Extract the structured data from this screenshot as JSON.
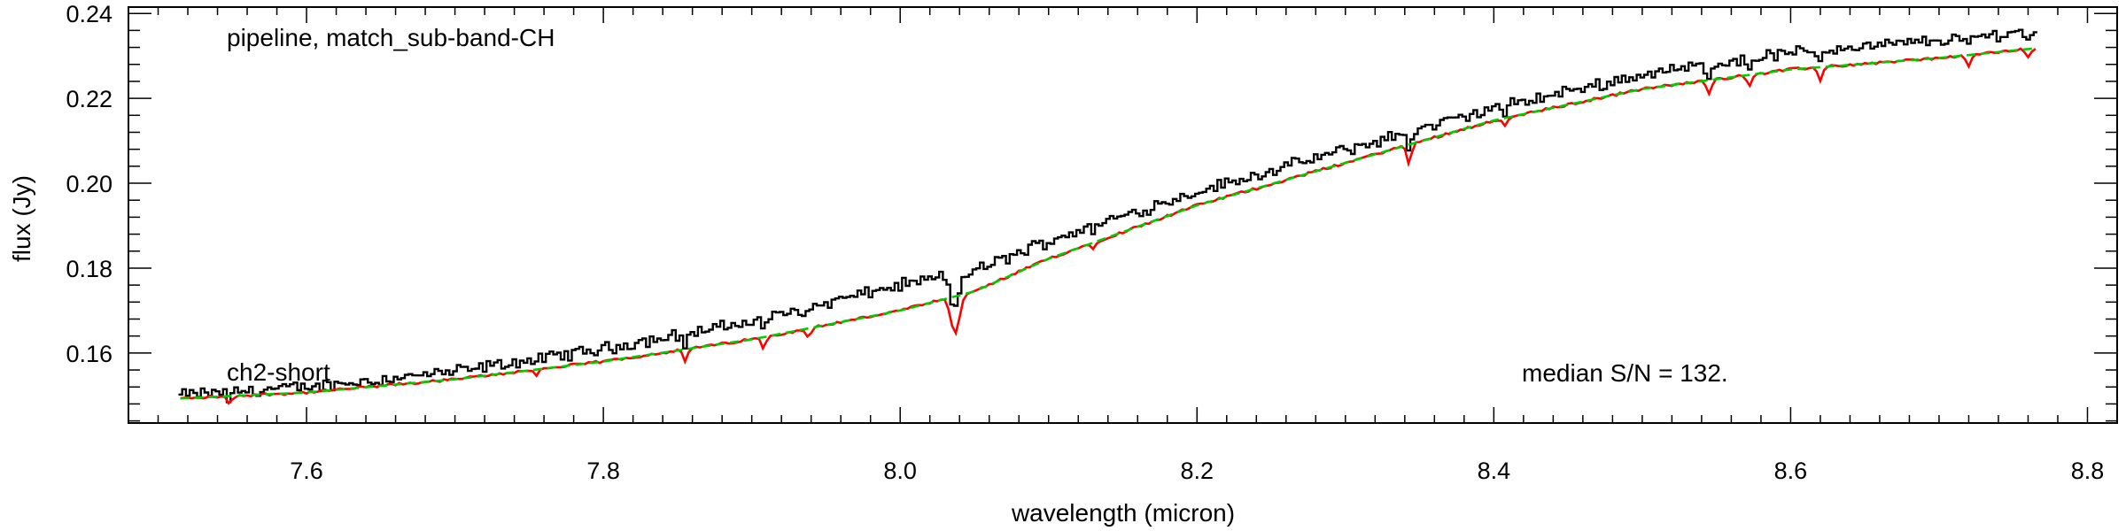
{
  "chart_data": {
    "type": "line",
    "title": "",
    "xlabel": "wavelength (micron)",
    "ylabel": "flux (Jy)",
    "xlim": [
      7.48,
      8.82
    ],
    "ylim": [
      0.1435,
      0.2415
    ],
    "x_ticks": [
      7.6,
      7.8,
      8.0,
      8.2,
      8.4,
      8.6,
      8.8
    ],
    "x_tick_labels": [
      "7.6",
      "7.8",
      "8.0",
      "8.2",
      "8.4",
      "8.6",
      "8.8"
    ],
    "y_ticks": [
      0.16,
      0.18,
      0.2,
      0.22,
      0.24
    ],
    "y_tick_labels": [
      "0.16",
      "0.18",
      "0.20",
      "0.22",
      "0.24"
    ],
    "grid": false,
    "annotations": {
      "top_left": "pipeline, match_sub-band-CH",
      "bottom_left": "ch2-short",
      "bottom_right": "median S/N = 132."
    },
    "colors": {
      "data": "#000000",
      "model": "#ff0000",
      "continuum": "#00cc00"
    },
    "continuum_points": [
      [
        7.515,
        0.1493
      ],
      [
        7.6,
        0.1507
      ],
      [
        7.7,
        0.1538
      ],
      [
        7.8,
        0.158
      ],
      [
        7.9,
        0.1632
      ],
      [
        8.0,
        0.17
      ],
      [
        8.05,
        0.1745
      ],
      [
        8.1,
        0.1822
      ],
      [
        8.2,
        0.1948
      ],
      [
        8.3,
        0.2048
      ],
      [
        8.4,
        0.2148
      ],
      [
        8.5,
        0.2222
      ],
      [
        8.6,
        0.2268
      ],
      [
        8.7,
        0.2295
      ],
      [
        8.765,
        0.2318
      ]
    ],
    "data_offset_points": [
      [
        7.515,
        0.0008
      ],
      [
        7.7,
        0.0018
      ],
      [
        7.9,
        0.0042
      ],
      [
        8.0,
        0.006
      ],
      [
        8.05,
        0.0048
      ],
      [
        8.2,
        0.0032
      ],
      [
        8.4,
        0.0028
      ],
      [
        8.6,
        0.004
      ],
      [
        8.765,
        0.0042
      ]
    ],
    "absorption_features": [
      {
        "x": 7.548,
        "depth": 0.002
      },
      {
        "x": 7.755,
        "depth": 0.0012
      },
      {
        "x": 7.855,
        "depth": 0.0028
      },
      {
        "x": 7.908,
        "depth": 0.0025
      },
      {
        "x": 7.938,
        "depth": 0.0022
      },
      {
        "x": 8.037,
        "depth": 0.009
      },
      {
        "x": 8.13,
        "depth": 0.0012
      },
      {
        "x": 8.343,
        "depth": 0.0045
      },
      {
        "x": 8.408,
        "depth": 0.002
      },
      {
        "x": 8.545,
        "depth": 0.003
      },
      {
        "x": 8.572,
        "depth": 0.0025
      },
      {
        "x": 8.62,
        "depth": 0.003
      },
      {
        "x": 8.72,
        "depth": 0.003
      },
      {
        "x": 8.76,
        "depth": 0.002
      }
    ],
    "x_range": [
      7.515,
      8.765
    ],
    "sample_step": 0.0025
  }
}
